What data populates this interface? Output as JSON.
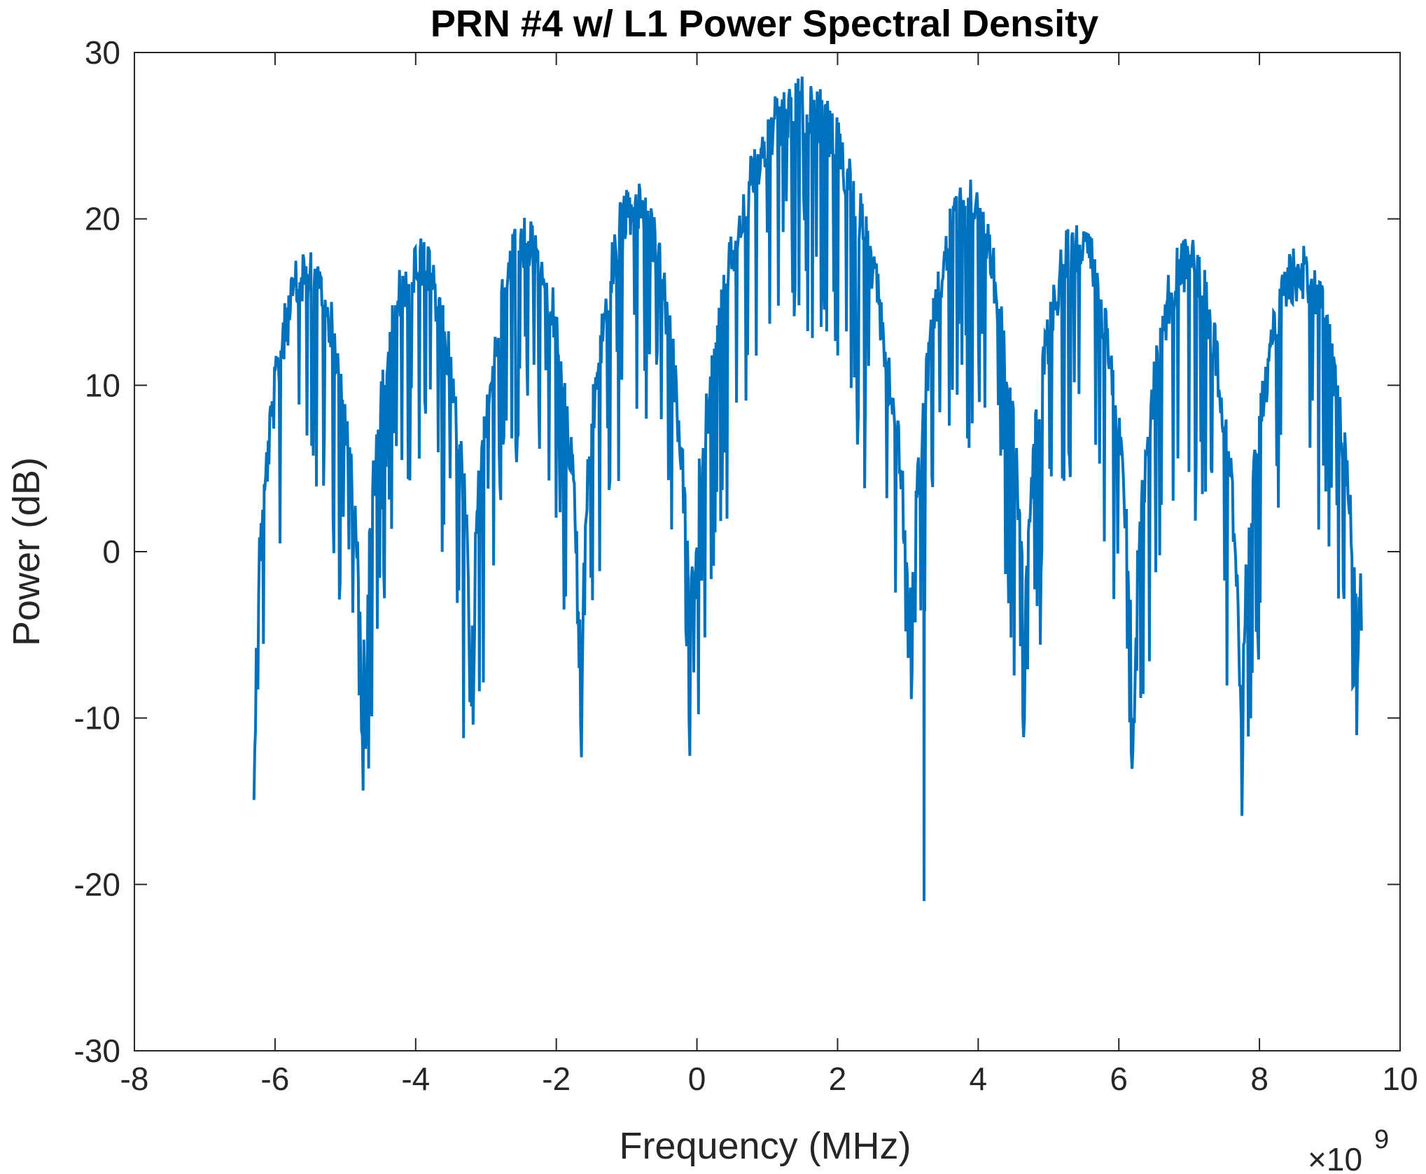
{
  "chart_data": {
    "type": "line",
    "title": "PRN #4 w/ L1 Power Spectral Density",
    "xlabel": "Frequency (MHz)",
    "ylabel": "Power (dB)",
    "x_exponent": {
      "times": "×10",
      "power": "9"
    },
    "xlim": [
      -8,
      10
    ],
    "ylim": [
      -30,
      30
    ],
    "xticks": [
      -8,
      -6,
      -4,
      -2,
      0,
      2,
      4,
      6,
      8,
      10
    ],
    "xtick_labels": [
      "-8",
      "-6",
      "-4",
      "-2",
      "0",
      "2",
      "4",
      "6",
      "8",
      "10"
    ],
    "yticks": [
      -30,
      -20,
      -10,
      0,
      10,
      20,
      30
    ],
    "ytick_labels": [
      "-30",
      "-20",
      "-10",
      "0",
      "10",
      "20",
      "30"
    ],
    "grid": false,
    "series": [
      {
        "color": "#0072BD",
        "envelope": {
          "x_range": [
            -6.3,
            9.45
          ],
          "center": 1.5,
          "main_lobe_width": 3.1,
          "side_lobe_spacing": 1.55,
          "peak_db": [
            18.5,
            19.0,
            20.2,
            22.5,
            28.6,
            22.5,
            20.2,
            19.0,
            18.5
          ],
          "lobe_centers": [
            -5.5,
            -3.9,
            -2.4,
            -0.8,
            1.5,
            3.9,
            5.5,
            7.0,
            8.5
          ],
          "null_x": [
            -6.3,
            -4.75,
            -3.2,
            -1.65,
            -0.1,
            3.05,
            4.65,
            6.2,
            7.75,
            9.4
          ],
          "null_min_db": [
            -8.6,
            -8.7,
            -5.1,
            -5.8,
            -5.5,
            -5.0,
            -5.0,
            -8.8,
            -8.9,
            -5.8
          ]
        },
        "notable_points": [
          {
            "x": 3.23,
            "y": -21.0
          }
        ]
      }
    ]
  }
}
